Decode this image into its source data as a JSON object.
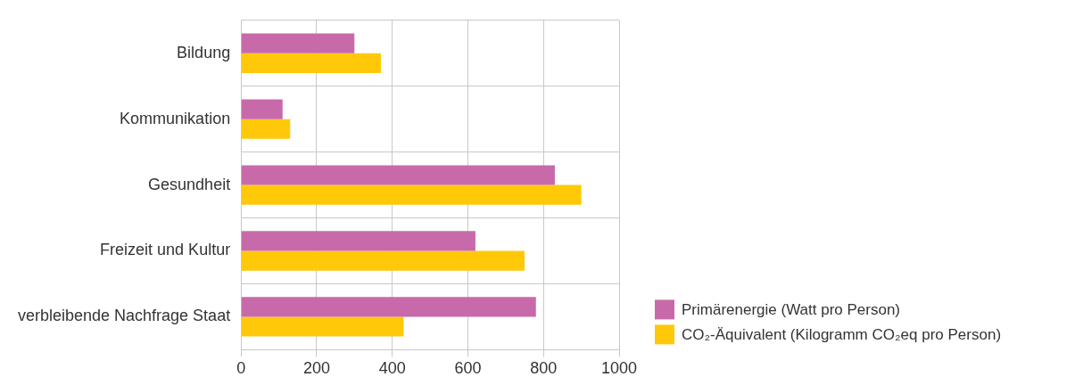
{
  "chart_data": {
    "type": "bar",
    "orientation": "horizontal",
    "categories": [
      "Bildung",
      "Kommunikation",
      "Gesundheit",
      "Freizeit und Kultur",
      "verbleibende Nachfrage Staat"
    ],
    "series": [
      {
        "name": "Primärenergie (Watt pro Person)",
        "color": "#c86aaa",
        "values": [
          300,
          110,
          830,
          620,
          780
        ]
      },
      {
        "name": "CO₂-Äquivalent (Kilogramm CO₂eq pro Person)",
        "color": "#ffc90a",
        "values": [
          370,
          130,
          900,
          750,
          430
        ]
      }
    ],
    "xlim": [
      0,
      1000
    ],
    "xticks": [
      0,
      200,
      400,
      600,
      800,
      1000
    ],
    "grid": true,
    "legend": "bottom right"
  }
}
